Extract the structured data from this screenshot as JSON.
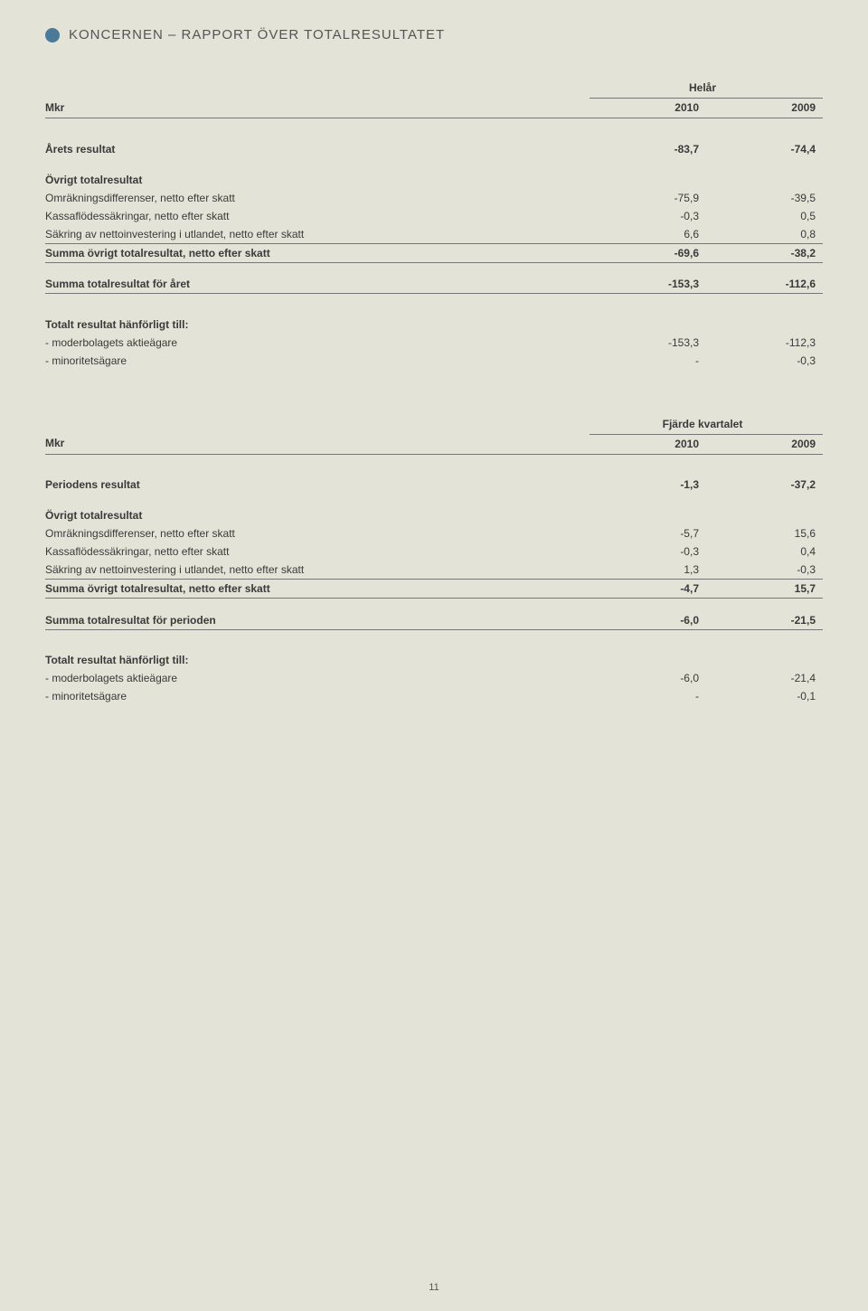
{
  "title": "KONCERNEN – RAPPORT ÖVER TOTALRESULTATET",
  "page_number": "11",
  "colors": {
    "background": "#e3e3d8",
    "bullet": "#4a7a9a",
    "text": "#3a3a3a",
    "rule": "#777777"
  },
  "tables": [
    {
      "period_label": "Helår",
      "unit_label": "Mkr",
      "years": [
        "2010",
        "2009"
      ],
      "rows": [
        {
          "type": "big-spacer"
        },
        {
          "label": "Årets resultat",
          "vals": [
            "-83,7",
            "-74,4"
          ],
          "bold": true
        },
        {
          "type": "spacer"
        },
        {
          "label": "Övrigt totalresultat",
          "vals": [
            "",
            ""
          ],
          "bold": true
        },
        {
          "label": "Omräkningsdifferenser, netto efter skatt",
          "vals": [
            "-75,9",
            "-39,5"
          ]
        },
        {
          "label": "Kassaflödessäkringar, netto efter skatt",
          "vals": [
            "-0,3",
            "0,5"
          ]
        },
        {
          "label": "Säkring av nettoinvestering i utlandet, netto efter skatt",
          "vals": [
            "6,6",
            "0,8"
          ],
          "rule_bottom": true
        },
        {
          "label": "Summa övrigt totalresultat, netto efter skatt",
          "vals": [
            "-69,6",
            "-38,2"
          ],
          "bold": true,
          "rule_bottom": true
        },
        {
          "type": "spacer"
        },
        {
          "label": "Summa totalresultat för året",
          "vals": [
            "-153,3",
            "-112,6"
          ],
          "bold": true,
          "rule_bottom": true
        },
        {
          "type": "big-spacer"
        },
        {
          "label": "Totalt resultat hänförligt till:",
          "vals": [
            "",
            ""
          ],
          "bold": true
        },
        {
          "label": " - moderbolagets aktieägare",
          "vals": [
            "-153,3",
            "-112,3"
          ]
        },
        {
          "label": " - minoritetsägare",
          "vals": [
            "-",
            "-0,3"
          ]
        }
      ]
    },
    {
      "period_label": "Fjärde kvartalet",
      "unit_label": "Mkr",
      "years": [
        "2010",
        "2009"
      ],
      "rows": [
        {
          "type": "big-spacer"
        },
        {
          "label": "Periodens resultat",
          "vals": [
            "-1,3",
            "-37,2"
          ],
          "bold": true
        },
        {
          "type": "spacer"
        },
        {
          "label": "Övrigt totalresultat",
          "vals": [
            "",
            ""
          ],
          "bold": true
        },
        {
          "label": "Omräkningsdifferenser, netto efter skatt",
          "vals": [
            "-5,7",
            "15,6"
          ]
        },
        {
          "label": "Kassaflödessäkringar, netto efter skatt",
          "vals": [
            "-0,3",
            "0,4"
          ]
        },
        {
          "label": "Säkring av nettoinvestering i utlandet, netto efter skatt",
          "vals": [
            "1,3",
            "-0,3"
          ],
          "rule_bottom": true
        },
        {
          "label": "Summa övrigt totalresultat, netto efter skatt",
          "vals": [
            "-4,7",
            "15,7"
          ],
          "bold": true,
          "rule_bottom": true
        },
        {
          "type": "spacer"
        },
        {
          "label": "Summa totalresultat för perioden",
          "vals": [
            "-6,0",
            "-21,5"
          ],
          "bold": true,
          "rule_bottom": true
        },
        {
          "type": "big-spacer"
        },
        {
          "label": "Totalt resultat hänförligt till:",
          "vals": [
            "",
            ""
          ],
          "bold": true
        },
        {
          "label": " - moderbolagets aktieägare",
          "vals": [
            "-6,0",
            "-21,4"
          ]
        },
        {
          "label": " - minoritetsägare",
          "vals": [
            "-",
            "-0,1"
          ]
        }
      ]
    }
  ]
}
